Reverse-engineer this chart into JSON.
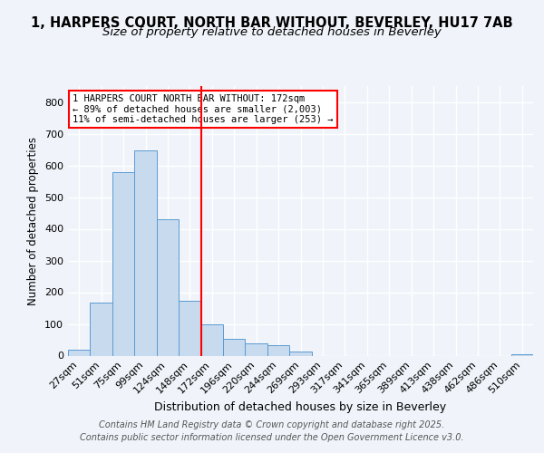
{
  "title": "1, HARPERS COURT, NORTH BAR WITHOUT, BEVERLEY, HU17 7AB",
  "subtitle": "Size of property relative to detached houses in Beverley",
  "xlabel": "Distribution of detached houses by size in Beverley",
  "ylabel": "Number of detached properties",
  "categories": [
    "27sqm",
    "51sqm",
    "75sqm",
    "99sqm",
    "124sqm",
    "148sqm",
    "172sqm",
    "196sqm",
    "220sqm",
    "244sqm",
    "269sqm",
    "293sqm",
    "317sqm",
    "341sqm",
    "365sqm",
    "389sqm",
    "413sqm",
    "438sqm",
    "462sqm",
    "486sqm",
    "510sqm"
  ],
  "values": [
    20,
    168,
    580,
    648,
    430,
    173,
    100,
    52,
    40,
    32,
    14,
    0,
    0,
    0,
    0,
    0,
    0,
    0,
    0,
    0,
    5
  ],
  "bar_color": "#c8daed",
  "bar_edge_color": "#5b9bd5",
  "vline_x": 6.0,
  "vline_color": "red",
  "annotation_text": "1 HARPERS COURT NORTH BAR WITHOUT: 172sqm\n← 89% of detached houses are smaller (2,003)\n11% of semi-detached houses are larger (253) →",
  "annotation_box_color": "white",
  "annotation_box_edge": "red",
  "ylim": [
    0,
    850
  ],
  "yticks": [
    0,
    100,
    200,
    300,
    400,
    500,
    600,
    700,
    800
  ],
  "footer": "Contains HM Land Registry data © Crown copyright and database right 2025.\nContains public sector information licensed under the Open Government Licence v3.0.",
  "bg_color": "#f0f4fa",
  "plot_bg_color": "#f0f4fa",
  "title_fontsize": 10.5,
  "subtitle_fontsize": 9.5,
  "footer_fontsize": 7,
  "tick_fontsize": 8,
  "ylabel_fontsize": 8.5,
  "xlabel_fontsize": 9
}
